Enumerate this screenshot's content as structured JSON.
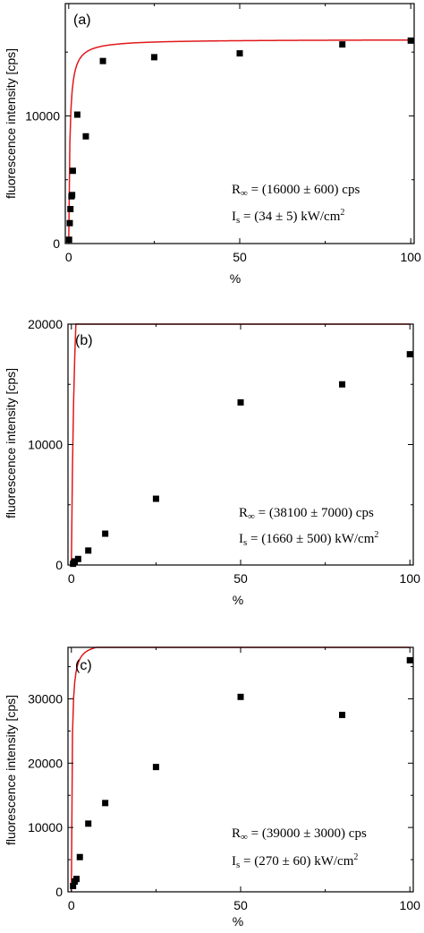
{
  "chart_data": [
    {
      "type": "scatter",
      "panel_label": "(a)",
      "xlabel": "%",
      "ylabel": "fluorescence intensity  [cps]",
      "xlim": [
        -1,
        101
      ],
      "ylim": [
        0,
        18800
      ],
      "xticks": [
        0,
        50,
        100
      ],
      "yticks": [
        0,
        10000
      ],
      "minor_x": [
        25,
        75
      ],
      "minor_y": [
        5000,
        15000
      ],
      "points": {
        "x": [
          0.1,
          0.3,
          0.5,
          0.8,
          1,
          1.2,
          2.5,
          5,
          10,
          25,
          50,
          80,
          100
        ],
        "y": [
          300,
          1600,
          2700,
          3700,
          3800,
          5700,
          10100,
          8400,
          14300,
          14600,
          14900,
          15600,
          15900
        ]
      },
      "fit": {
        "name": "fit",
        "color": "#e0191b",
        "Rinf": 16000,
        "Is": 34,
        "scale": 100
      },
      "annotations": [
        "R∞ = (16000 ± 600) cps",
        "Is = (34 ± 5) kW/cm2"
      ],
      "annotation_parts": [
        [
          "R",
          "∞",
          " = (16000 ± 600) cps"
        ],
        [
          "I",
          "s",
          " = (34 ± 5) kW/cm",
          "2"
        ]
      ],
      "grid": false,
      "marker_color": "#000000"
    },
    {
      "type": "scatter",
      "panel_label": "(b)",
      "xlabel": "%",
      "ylabel": "fluorescence intensity  [cps]",
      "xlim": [
        -1,
        101
      ],
      "ylim": [
        0,
        20000
      ],
      "xticks": [
        0,
        50,
        100
      ],
      "yticks": [
        0,
        10000,
        20000
      ],
      "minor_x": [
        25,
        75
      ],
      "minor_y": [
        5000,
        15000
      ],
      "points": {
        "x": [
          0.5,
          1,
          2,
          5,
          10,
          25,
          50,
          80,
          100
        ],
        "y": [
          100,
          300,
          500,
          1200,
          2600,
          5500,
          13500,
          15000,
          17500
        ]
      },
      "fit": {
        "name": "fit",
        "color": "#e0191b",
        "Rinf": 38100,
        "Is": 1660,
        "scale": 1385
      },
      "annotation_parts": [
        [
          "R",
          "∞",
          " = (38100 ± 7000) cps"
        ],
        [
          "I",
          "s",
          " = (1660 ± 500) kW/cm",
          "2"
        ]
      ],
      "grid": false,
      "marker_color": "#000000"
    },
    {
      "type": "scatter",
      "panel_label": "(c)",
      "xlabel": "%",
      "ylabel": "fluorescence intensity  [cps]",
      "xlim": [
        -1,
        101
      ],
      "ylim": [
        0,
        38000
      ],
      "xticks": [
        0,
        50,
        100
      ],
      "yticks": [
        0,
        10000,
        20000,
        30000
      ],
      "minor_x": [
        25,
        75
      ],
      "minor_y": [
        5000,
        15000,
        25000,
        35000
      ],
      "points": {
        "x": [
          0.5,
          1,
          1.5,
          2.5,
          5,
          10,
          25,
          50,
          80,
          100
        ],
        "y": [
          900,
          1600,
          2000,
          5400,
          10600,
          13800,
          19400,
          30300,
          27500,
          36000
        ]
      },
      "fit": {
        "name": "fit",
        "color": "#e0191b",
        "Rinf": 39000,
        "Is": 270,
        "scale": 1385
      },
      "annotation_parts": [
        [
          "R",
          "∞",
          " = (39000 ± 3000) cps"
        ],
        [
          "I",
          "s",
          " = (270 ± 60) kW/cm",
          "2"
        ]
      ],
      "grid": false,
      "marker_color": "#000000"
    }
  ]
}
